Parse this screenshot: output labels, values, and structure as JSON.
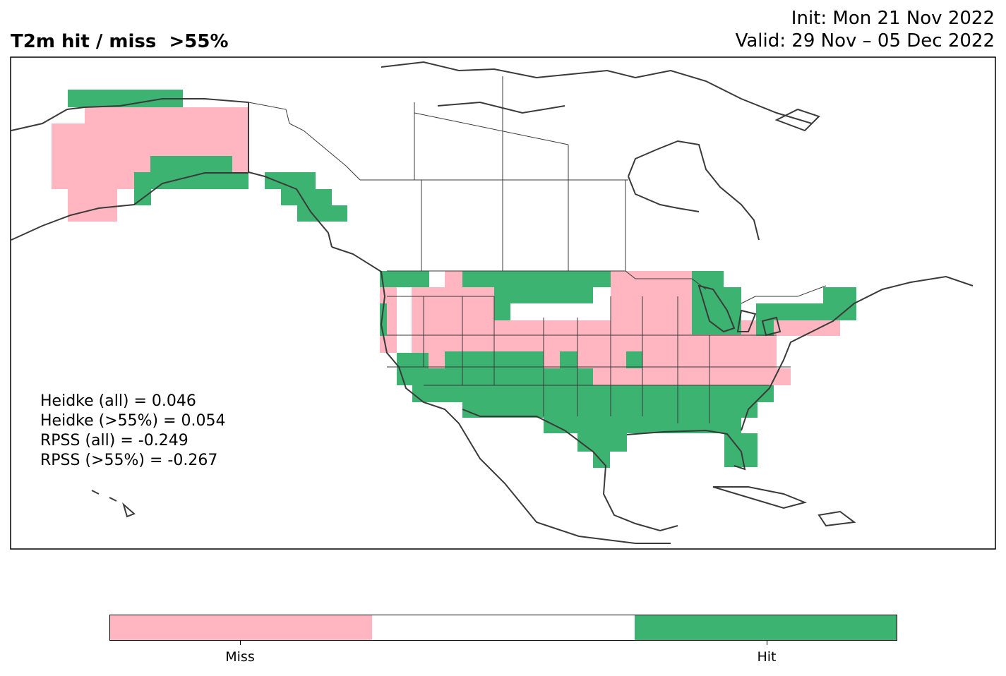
{
  "title": {
    "left": "T2m hit / miss  >55%",
    "init": "Init: Mon 21 Nov 2022",
    "valid": "Valid: 29 Nov – 05 Dec 2022"
  },
  "stats": {
    "heidke_all": "Heidke (all) = 0.046",
    "heidke_55": "Heidke (>55%) = 0.054",
    "rpss_all": "RPSS (all) = -0.249",
    "rpss_55": "RPSS (>55%) = -0.267"
  },
  "colors": {
    "miss": "#ffb6c1",
    "neutral": "#ffffff",
    "hit": "#3cb371",
    "coast": "#3a3a3a"
  },
  "legend": {
    "miss_label": "Miss",
    "hit_label": "Hit"
  }
}
